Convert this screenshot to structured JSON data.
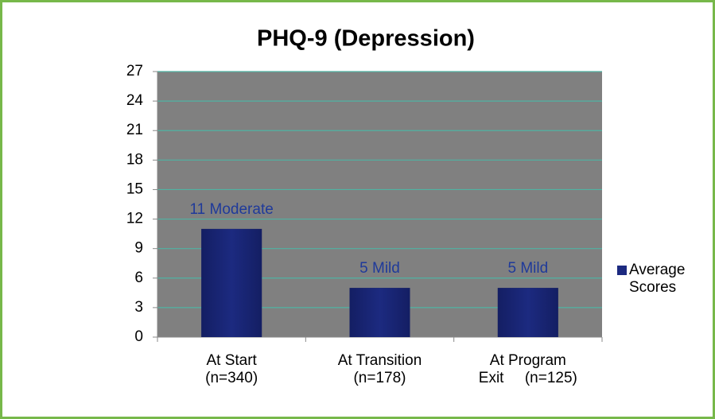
{
  "chart_data": {
    "type": "bar",
    "title": "PHQ-9 (Depression)",
    "categories": [
      "At Start\n(n=340)",
      "At Transition\n(n=178)",
      "At Program\nExit     (n=125)"
    ],
    "series": [
      {
        "name": "Average Scores",
        "color": "#1c2a80",
        "values": [
          11,
          5,
          5
        ],
        "value_labels": [
          "11 Moderate",
          "5 Mild",
          "5 Mild"
        ]
      }
    ],
    "ylim": [
      0,
      27
    ],
    "yticks": [
      0,
      3,
      6,
      9,
      12,
      15,
      18,
      21,
      24,
      27
    ],
    "grid": true,
    "legend": "right"
  }
}
